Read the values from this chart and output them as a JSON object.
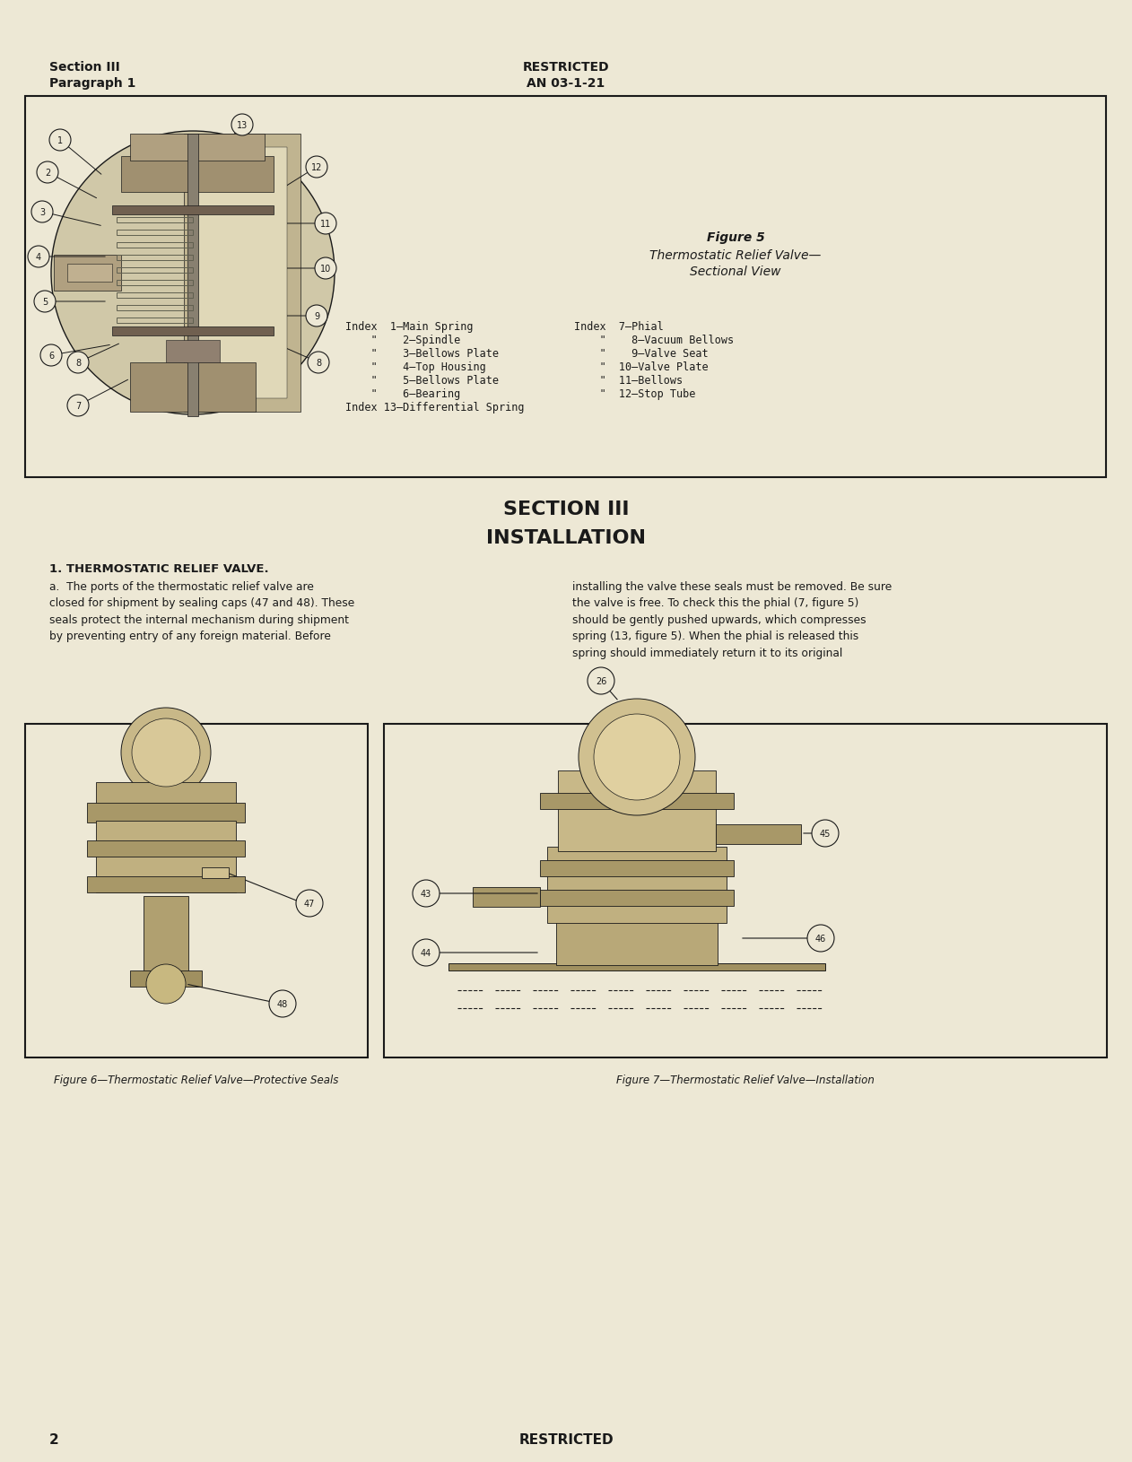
{
  "page_bg": "#ede8d5",
  "text_color": "#1a1a1a",
  "header_left_line1": "Section III",
  "header_left_line2": "Paragraph 1",
  "header_center_line1": "RESTRICTED",
  "header_center_line2": "AN 03-1-21",
  "footer_text": "RESTRICTED",
  "page_number": "2",
  "fig5_caption_line1": "Figure 5",
  "fig5_caption_line2": "Thermostatic Relief Valve—",
  "fig5_caption_line3": "Sectional View",
  "section_title_line1": "SECTION III",
  "section_title_line2": "INSTALLATION",
  "para1_title": "1. THERMOSTATIC RELIEF VALVE.",
  "para1_text_col1": "a.  The ports of the thermostatic relief valve are\nclosed for shipment by sealing caps (47 and 48). These\nseals protect the internal mechanism during shipment\nby preventing entry of any foreign material. Before",
  "para1_text_col2": "installing the valve these seals must be removed. Be sure\nthe valve is free. To check this the phial (7, figure 5)\nshould be gently pushed upwards, which compresses\nspring (13, figure 5). When the phial is released this\nspring should immediately return it to its original",
  "fig6_caption": "Figure 6—Thermostatic Relief Valve—Protective Seals",
  "fig7_caption": "Figure 7—Thermostatic Relief Valve—Installation",
  "idx_left": [
    "Index  1—Main Spring",
    "    \"    2—Spindle",
    "    \"    3—Bellows Plate",
    "    \"    4—Top Housing",
    "    \"    5—Bellows Plate",
    "    \"    6—Bearing",
    "Index 13—Differential Spring"
  ],
  "idx_right": [
    "Index  7—Phial",
    "    \"    8—Vacuum Bellows",
    "    \"    9—Valve Seat",
    "    \"  10—Valve Plate",
    "    \"  11—Bellows",
    "    \"  12—Stop Tube"
  ]
}
